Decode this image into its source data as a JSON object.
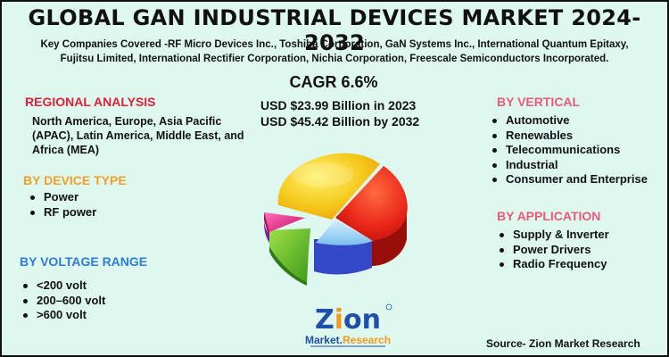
{
  "title": "GLOBAL GAN INDUSTRIAL DEVICES MARKET 2024-2032",
  "companies": {
    "line1": "Key Companies Covered -RF Micro Devices Inc., Toshiba Corporation, GaN Systems Inc., International Quantum Epitaxy,",
    "line2": "Fujitsu Limited, International Rectifier Corporation, Nichia Corporation, Freescale Semiconductors Incorporated."
  },
  "cagr": "CAGR 6.6%",
  "market_2023": "USD $23.99 Billion in 2023",
  "market_2032": "USD $45.42 Billion by 2032",
  "regional": {
    "title": "REGIONAL ANALYSIS",
    "text": "North America, Europe, Asia Pacific (APAC), Latin America, Middle East, and Africa (MEA)"
  },
  "device_type": {
    "title": "BY DEVICE TYPE",
    "items": [
      "Power",
      "RF power"
    ]
  },
  "voltage": {
    "title": "BY VOLTAGE RANGE",
    "items": [
      "<200 volt",
      "200–600 volt",
      ">600 volt"
    ]
  },
  "vertical": {
    "title": "BY VERTICAL",
    "items": [
      "Automotive",
      "Renewables",
      "Telecommunications",
      "Industrial",
      "Consumer and Enterprise"
    ]
  },
  "application": {
    "title": "BY APPLICATION",
    "items": [
      "Supply & Inverter",
      "Power Drivers",
      "Radio Frequency"
    ]
  },
  "logo": {
    "line1": "Zion",
    "line2": "Market.Research"
  },
  "source": "Source- Zion Market Research",
  "colors": {
    "background": "#dff8ef",
    "regional_title": "#e0203a",
    "device_title": "#f0a028",
    "voltage_title": "#2f7ad6",
    "vertical_title": "#e85a7a",
    "application_title": "#e85a7a",
    "logo_blue": "#1f4fa8",
    "logo_orange": "#f29a1a"
  },
  "graphic": {
    "type": "decorative-3d-pie",
    "slice_colors": [
      "#f0c818",
      "#e82418",
      "#7cc8f0",
      "#3c58d8",
      "#58b828",
      "#e8288a"
    ]
  }
}
